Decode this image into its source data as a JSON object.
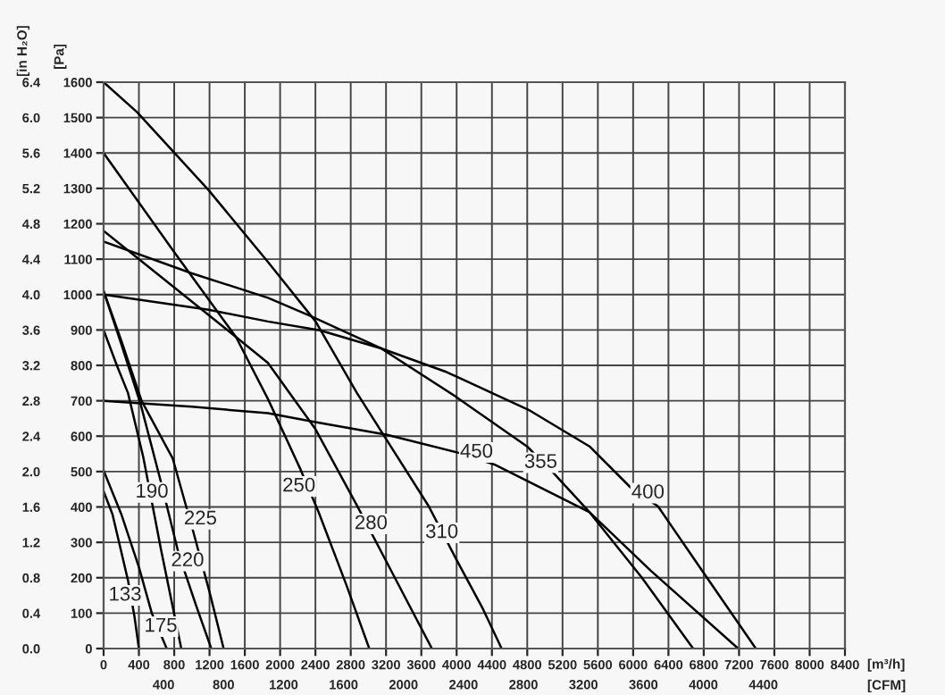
{
  "chart_data": {
    "type": "line",
    "xlabel": "[m³/h]",
    "x2label": "[CFM]",
    "ylabel": "[Pa]",
    "y2label": "[in H₂O]",
    "xlim": [
      0,
      8400
    ],
    "xticks": [
      0,
      400,
      800,
      1200,
      1600,
      2000,
      2400,
      2800,
      3200,
      3600,
      4000,
      4400,
      4800,
      5200,
      5600,
      6000,
      6400,
      6800,
      7200,
      7600,
      8000,
      8400
    ],
    "x2lim": [
      0,
      4944
    ],
    "x2ticks": [
      400,
      800,
      1200,
      1600,
      2000,
      2400,
      2800,
      3200,
      3600,
      4000,
      4400
    ],
    "ylim": [
      0,
      1600
    ],
    "yticks": [
      0,
      100,
      200,
      300,
      400,
      500,
      600,
      700,
      800,
      900,
      1000,
      1100,
      1200,
      1300,
      1400,
      1500,
      1600
    ],
    "y2lim": [
      0,
      6.4
    ],
    "y2ticks": [
      {
        "value": 0,
        "label": "0.0"
      },
      0.4,
      0.8,
      1.2,
      1.6,
      {
        "value": 2,
        "label": "2.0"
      },
      2.4,
      2.8,
      3.2,
      3.6,
      {
        "value": 4,
        "label": "4.0"
      },
      4.4,
      4.8,
      5.2,
      5.6,
      {
        "value": 6,
        "label": "6.0"
      },
      6.4
    ],
    "grid": true,
    "marker": "none",
    "line_style": "solid",
    "series": [
      {
        "color": "#000000",
        "x": [
          0,
          100,
          277,
          350,
          400
        ],
        "values": [
          444,
          380,
          192,
          90,
          0
        ]
      },
      {
        "color": "#000000",
        "x": [
          0,
          200,
          400,
          546,
          715
        ],
        "values": [
          503,
          380,
          230,
          100,
          0
        ]
      },
      {
        "color": "#000000",
        "x": [
          0,
          150,
          276,
          450,
          650,
          880
        ],
        "values": [
          900,
          800,
          722,
          540,
          280,
          0
        ]
      },
      {
        "color": "#000000",
        "x": [
          0,
          200,
          420,
          650,
          850,
          1050,
          1220
        ],
        "values": [
          1010,
          860,
          690,
          470,
          268,
          120,
          0
        ]
      },
      {
        "color": "#000000",
        "x": [
          0,
          200,
          430,
          783,
          1018,
          1200,
          1360
        ],
        "values": [
          1010,
          870,
          700,
          537,
          328,
          160,
          0
        ]
      },
      {
        "color": "#000000",
        "x": [
          0,
          800,
          1500,
          1862,
          2233,
          2437,
          2750,
          3010
        ],
        "values": [
          1400,
          1120,
          880,
          705,
          505,
          385,
          180,
          0
        ]
      },
      {
        "color": "#000000",
        "x": [
          0,
          800,
          1500,
          1862,
          2400,
          2875,
          3300,
          3720
        ],
        "values": [
          1180,
          1020,
          880,
          807,
          620,
          402,
          200,
          0
        ]
      },
      {
        "color": "#000000",
        "x": [
          0,
          380,
          1190,
          1862,
          2402,
          2870,
          3684,
          4000,
          4290,
          4510
        ],
        "values": [
          1600,
          1515,
          1295,
          1092,
          924,
          722,
          402,
          250,
          116,
          0
        ]
      },
      {
        "color": "#000000",
        "x": [
          0,
          1000,
          1862,
          2330,
          3144,
          4000,
          4798,
          5101,
          5506,
          6100,
          6680
        ],
        "values": [
          1150,
          1060,
          991,
          941,
          848,
          710,
          571,
          495,
          385,
          200,
          0
        ]
      },
      {
        "color": "#000000",
        "x": [
          0,
          1190,
          1862,
          2450,
          3144,
          3887,
          4832,
          5506,
          5979,
          6281,
          6790,
          7390
        ],
        "values": [
          1000,
          957,
          924,
          899,
          848,
          781,
          672,
          571,
          453,
          402,
          217,
          0
        ]
      },
      {
        "color": "#000000",
        "x": [
          0,
          1000,
          1862,
          2400,
          3212,
          4022,
          4427,
          5506,
          6200,
          7190
        ],
        "values": [
          700,
          683,
          665,
          640,
          604,
          553,
          520,
          385,
          220,
          0
        ]
      }
    ],
    "annotations": [
      {
        "text": "133",
        "x": 243,
        "y": 150
      },
      {
        "text": "175",
        "x": 648,
        "y": 62
      },
      {
        "text": "190",
        "x": 547,
        "y": 441
      },
      {
        "text": "220",
        "x": 951,
        "y": 247
      },
      {
        "text": "225",
        "x": 1097,
        "y": 365
      },
      {
        "text": "250",
        "x": 2213,
        "y": 458
      },
      {
        "text": "280",
        "x": 3030,
        "y": 352
      },
      {
        "text": "310",
        "x": 3832,
        "y": 327
      },
      {
        "text": "450",
        "x": 4225,
        "y": 554
      },
      {
        "text": "355",
        "x": 4953,
        "y": 525
      },
      {
        "text": "400",
        "x": 6167,
        "y": 439
      }
    ]
  }
}
